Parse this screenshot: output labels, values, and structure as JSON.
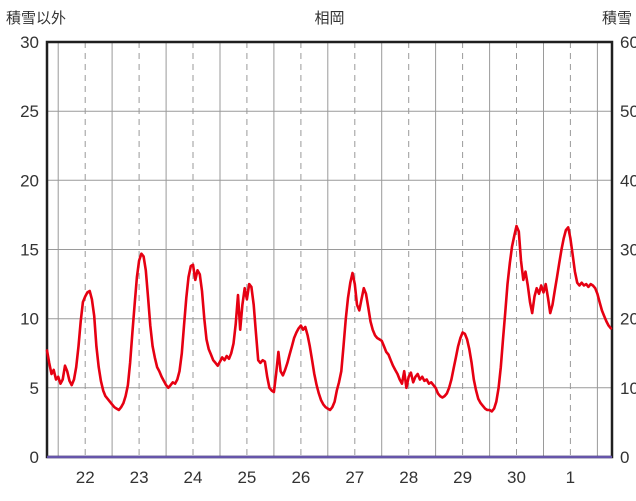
{
  "chart_data": {
    "type": "line",
    "title": "相岡",
    "ylabel_left": "積雪以外",
    "ylabel_right": "積雪",
    "grid": true,
    "legend": "none",
    "left_axis": {
      "min": 0,
      "max": 30,
      "ticks": [
        0,
        5,
        10,
        15,
        20,
        25,
        30
      ]
    },
    "right_axis": {
      "min": 0,
      "max": 60,
      "ticks": [
        0,
        10,
        20,
        30,
        40,
        50,
        60
      ]
    },
    "x_axis": {
      "labels": [
        "22",
        "23",
        "24",
        "25",
        "26",
        "27",
        "28",
        "29",
        "30",
        "1"
      ],
      "domain_hours": [
        -5,
        246.5
      ],
      "day_line_hours": [
        0,
        24,
        48,
        72,
        96,
        120,
        144,
        168,
        192,
        216,
        240
      ],
      "noon_line_hours": [
        12,
        36,
        60,
        84,
        108,
        132,
        156,
        180,
        204,
        228
      ]
    },
    "colors": {
      "line_red": "#e60012",
      "line_purple": "#6655aa",
      "grid": "#9a9a9a",
      "frame": "#1f1f1f",
      "text": "#333333"
    },
    "series": [
      {
        "name": "積雪以外",
        "axis": "left",
        "color": "#e60012",
        "start_hour": -5,
        "step_hours": 1,
        "values": [
          7.7,
          6.8,
          6.0,
          6.3,
          5.6,
          5.8,
          5.3,
          5.6,
          6.6,
          6.2,
          5.5,
          5.2,
          5.6,
          6.5,
          8.0,
          9.8,
          11.2,
          11.6,
          11.9,
          12.0,
          11.4,
          10.2,
          8.0,
          6.5,
          5.5,
          4.8,
          4.4,
          4.2,
          4.0,
          3.8,
          3.6,
          3.5,
          3.4,
          3.6,
          3.9,
          4.4,
          5.2,
          6.8,
          9.0,
          11.0,
          13.0,
          14.2,
          14.7,
          14.5,
          13.5,
          11.5,
          9.5,
          8.0,
          7.2,
          6.5,
          6.2,
          5.8,
          5.5,
          5.2,
          5.0,
          5.2,
          5.4,
          5.3,
          5.6,
          6.2,
          7.5,
          9.5,
          11.5,
          13.0,
          13.8,
          13.9,
          12.8,
          13.5,
          13.2,
          12.0,
          10.0,
          8.5,
          7.8,
          7.4,
          7.0,
          6.8,
          6.6,
          6.9,
          7.2,
          7.0,
          7.3,
          7.1,
          7.5,
          8.2,
          9.6,
          11.7,
          9.2,
          11.0,
          12.2,
          11.4,
          12.5,
          12.3,
          11.0,
          9.0,
          7.0,
          6.8,
          7.0,
          6.9,
          5.8,
          5.0,
          4.8,
          4.7,
          6.0,
          7.6,
          6.2,
          5.9,
          6.3,
          6.8,
          7.4,
          8.0,
          8.6,
          9.0,
          9.3,
          9.5,
          9.2,
          9.4,
          8.8,
          8.0,
          7.0,
          6.0,
          5.2,
          4.6,
          4.1,
          3.8,
          3.6,
          3.5,
          3.4,
          3.6,
          4.0,
          4.8,
          5.4,
          6.2,
          8.0,
          10.0,
          11.5,
          12.6,
          13.3,
          12.5,
          11.0,
          10.6,
          11.4,
          12.2,
          11.8,
          10.8,
          9.8,
          9.2,
          8.8,
          8.6,
          8.5,
          8.4,
          8.0,
          7.6,
          7.4,
          7.0,
          6.6,
          6.3,
          6.0,
          5.6,
          5.3,
          6.2,
          5.0,
          5.8,
          6.1,
          5.4,
          5.8,
          6.0,
          5.6,
          5.8,
          5.5,
          5.6,
          5.3,
          5.4,
          5.2,
          5.0,
          4.6,
          4.4,
          4.3,
          4.4,
          4.6,
          5.0,
          5.6,
          6.4,
          7.2,
          8.0,
          8.6,
          9.0,
          8.9,
          8.5,
          7.8,
          6.8,
          5.6,
          4.8,
          4.2,
          3.9,
          3.7,
          3.5,
          3.4,
          3.4,
          3.3,
          3.5,
          4.0,
          5.0,
          6.5,
          8.5,
          10.5,
          12.5,
          14.0,
          15.2,
          16.0,
          16.7,
          16.3,
          14.2,
          12.8,
          13.4,
          12.4,
          11.2,
          10.4,
          11.6,
          12.2,
          11.8,
          12.4,
          11.9,
          12.5,
          11.5,
          10.4,
          11.0,
          12.0,
          13.0,
          14.0,
          15.0,
          15.8,
          16.4,
          16.6,
          15.8,
          14.6,
          13.4,
          12.6,
          12.4,
          12.6,
          12.4,
          12.5,
          12.3,
          12.5,
          12.4,
          12.2,
          11.8,
          11.2,
          10.6,
          10.2,
          9.8,
          9.5,
          9.3
        ]
      },
      {
        "name": "積雪",
        "axis": "right",
        "color": "#6655aa",
        "x_hours": [
          -5,
          246.5
        ],
        "values": [
          0,
          0
        ]
      }
    ]
  }
}
